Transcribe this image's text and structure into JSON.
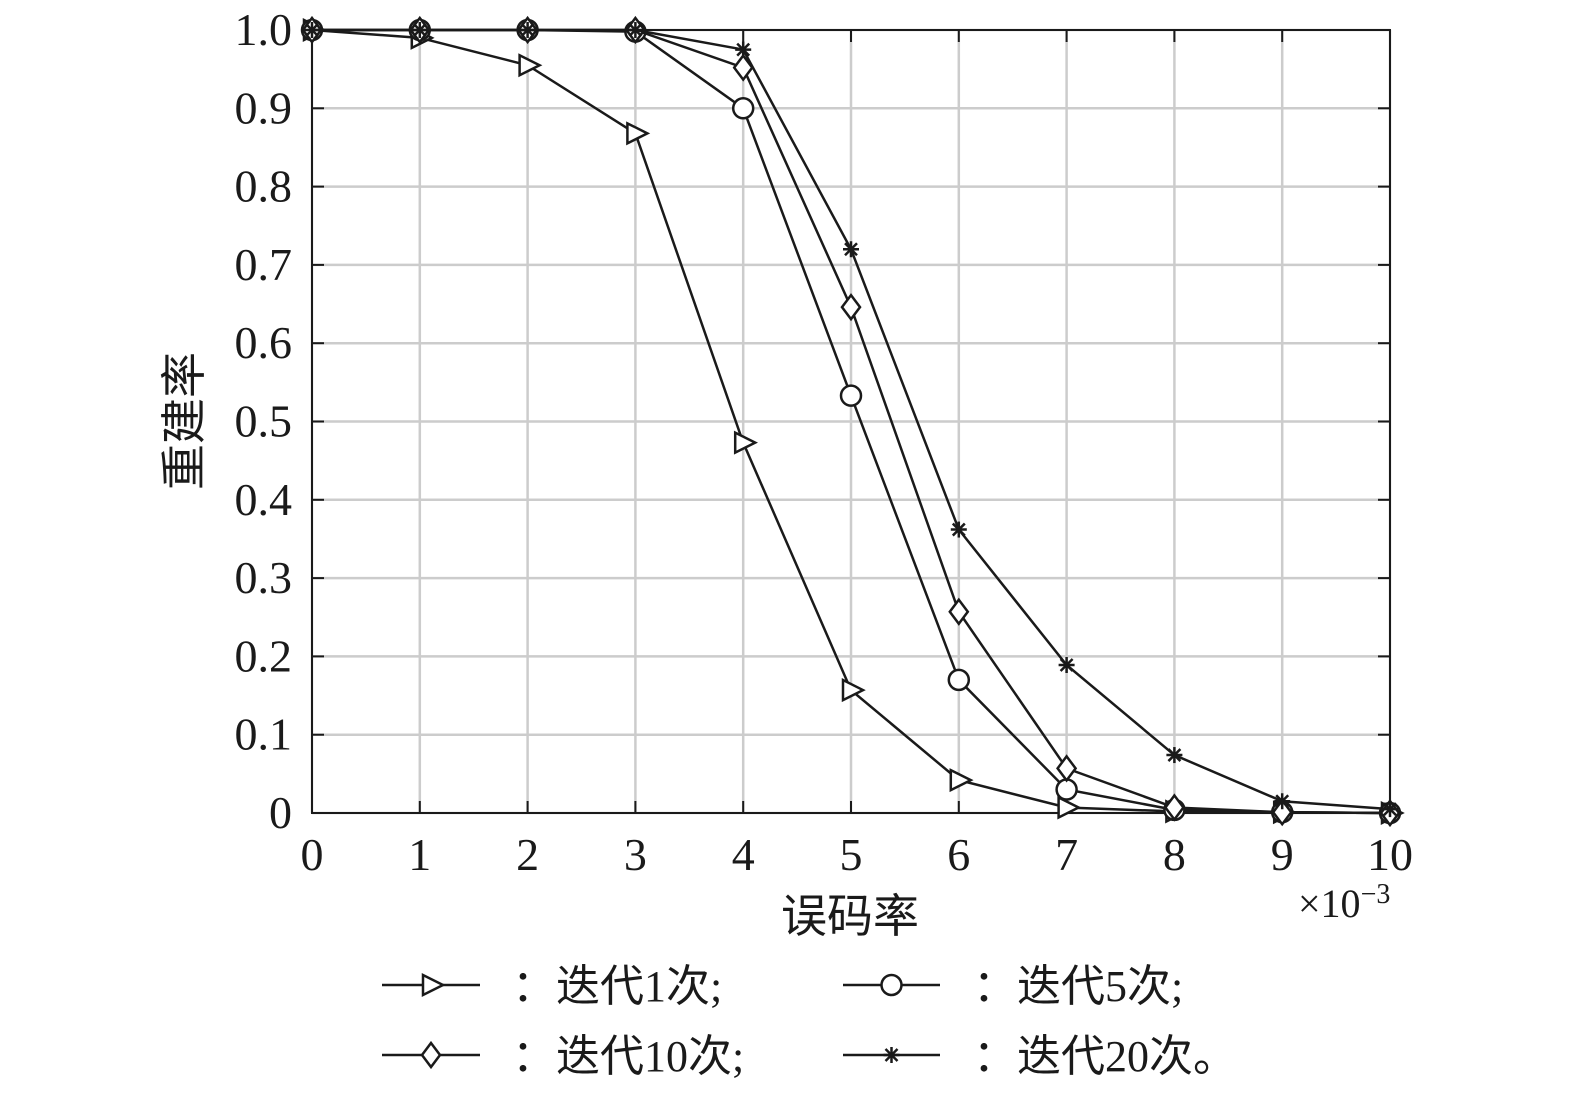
{
  "chart_data": {
    "type": "line",
    "xlabel": "误码率",
    "ylabel": "重建率",
    "x_multiplier": "×10",
    "x_multiplier_exponent": "−3",
    "xlim": [
      0,
      10
    ],
    "ylim": [
      0,
      1.0
    ],
    "x_ticks": [
      "0",
      "1",
      "2",
      "3",
      "4",
      "5",
      "6",
      "7",
      "8",
      "9",
      "10"
    ],
    "y_ticks": [
      "0",
      "0.1",
      "0.2",
      "0.3",
      "0.4",
      "0.5",
      "0.6",
      "0.7",
      "0.8",
      "0.9",
      "1.0"
    ],
    "grid": true,
    "legend_position": "bottom",
    "x": [
      0,
      1,
      2,
      3,
      4,
      5,
      6,
      7,
      8,
      9,
      10
    ],
    "series": [
      {
        "name": "：迭代1次;",
        "marker": "triangle-right",
        "values": [
          1.0,
          0.99,
          0.955,
          0.868,
          0.473,
          0.157,
          0.042,
          0.007,
          0.002,
          0.001,
          0.0
        ]
      },
      {
        "name": "：迭代5次;",
        "marker": "circle",
        "values": [
          1.0,
          1.0,
          1.0,
          0.998,
          0.9,
          0.533,
          0.17,
          0.03,
          0.004,
          0.001,
          0.0
        ]
      },
      {
        "name": "：迭代10次;",
        "marker": "diamond",
        "values": [
          1.0,
          1.0,
          1.0,
          1.0,
          0.952,
          0.646,
          0.257,
          0.057,
          0.007,
          0.001,
          0.0
        ]
      },
      {
        "name": "：迭代20次。",
        "marker": "asterisk",
        "values": [
          1.0,
          1.0,
          1.0,
          1.0,
          0.975,
          0.72,
          0.362,
          0.189,
          0.074,
          0.015,
          0.005
        ]
      }
    ],
    "colors": {
      "line": "#1a1a1a",
      "grid": "#cccccc",
      "axis": "#1a1a1a"
    }
  }
}
